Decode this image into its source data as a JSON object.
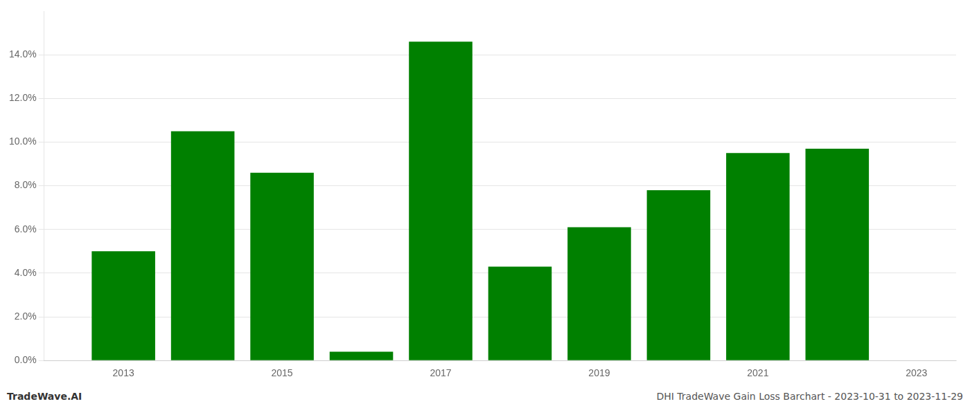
{
  "chart_data": {
    "type": "bar",
    "x": [
      2013,
      2014,
      2015,
      2016,
      2017,
      2018,
      2019,
      2020,
      2021,
      2022
    ],
    "values": [
      0.05,
      0.105,
      0.086,
      0.004,
      0.146,
      0.043,
      0.061,
      0.078,
      0.095,
      0.097
    ],
    "color": "#008000",
    "xlim": [
      2012.0,
      2023.5
    ],
    "xticks": [
      2013,
      2015,
      2017,
      2019,
      2021,
      2023
    ],
    "ylim": [
      0,
      0.16
    ],
    "yticks": [
      {
        "value": 0.0,
        "label": "0.0%"
      },
      {
        "value": 0.02,
        "label": "2.0%"
      },
      {
        "value": 0.04,
        "label": "4.0%"
      },
      {
        "value": 0.06,
        "label": "6.0%"
      },
      {
        "value": 0.08,
        "label": "8.0%"
      },
      {
        "value": 0.1,
        "label": "10.0%"
      },
      {
        "value": 0.12,
        "label": "12.0%"
      },
      {
        "value": 0.14,
        "label": "14.0%"
      }
    ],
    "grid": true,
    "annotations": [
      "TradeWave.AI",
      "DHI TradeWave Gain Loss Barchart - 2023-10-31 to 2023-11-29"
    ]
  }
}
